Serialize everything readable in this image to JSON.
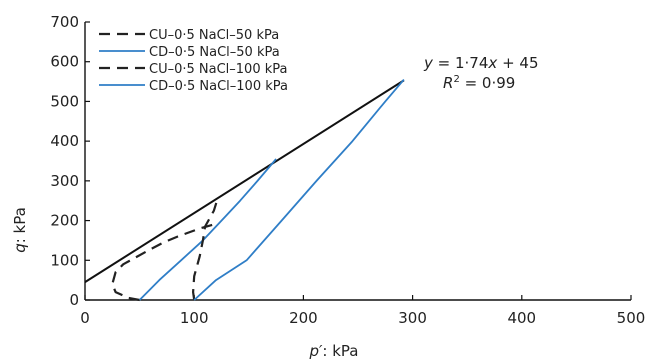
{
  "chart_data": {
    "type": "line",
    "title": "",
    "xlabel": {
      "symbol": "p′",
      "rest": ": kPa"
    },
    "ylabel": {
      "symbol": "q",
      "rest": ": kPa"
    },
    "xlim": [
      0,
      500
    ],
    "ylim": [
      0,
      700
    ],
    "xticks": [
      0,
      100,
      200,
      300,
      400,
      500
    ],
    "yticks": [
      0,
      100,
      200,
      300,
      400,
      500,
      600,
      700
    ],
    "grid": false,
    "legend_position": "top-left",
    "series": [
      {
        "name": "CU–0·5 NaCl–50 kPa",
        "color": "#222222",
        "dash": "dashed",
        "points": [
          [
            50,
            0
          ],
          [
            40,
            5
          ],
          [
            28,
            20
          ],
          [
            25,
            40
          ],
          [
            28,
            70
          ],
          [
            35,
            90
          ],
          [
            45,
            105
          ],
          [
            58,
            125
          ],
          [
            72,
            145
          ],
          [
            85,
            160
          ],
          [
            95,
            170
          ],
          [
            105,
            180
          ],
          [
            118,
            190
          ]
        ]
      },
      {
        "name": "CD–0·5 NaCl–50 kPa",
        "color": "#2f7ec7",
        "dash": "solid",
        "points": [
          [
            50,
            0
          ],
          [
            68,
            50
          ],
          [
            88,
            100
          ],
          [
            108,
            150
          ],
          [
            125,
            200
          ],
          [
            142,
            250
          ],
          [
            158,
            300
          ],
          [
            175,
            355
          ]
        ]
      },
      {
        "name": "CU–0·5 NaCl–100 kPa",
        "color": "#222222",
        "dash": "dashed",
        "points": [
          [
            100,
            0
          ],
          [
            99,
            20
          ],
          [
            100,
            60
          ],
          [
            105,
            110
          ],
          [
            108,
            150
          ],
          [
            110,
            185
          ],
          [
            115,
            210
          ],
          [
            118,
            225
          ],
          [
            122,
            260
          ]
        ]
      },
      {
        "name": "CD–0·5 NaCl–100 kPa",
        "color": "#2f7ec7",
        "dash": "solid",
        "points": [
          [
            100,
            0
          ],
          [
            120,
            50
          ],
          [
            148,
            100
          ],
          [
            180,
            200
          ],
          [
            212,
            300
          ],
          [
            245,
            400
          ],
          [
            275,
            500
          ],
          [
            292,
            555
          ]
        ]
      }
    ],
    "fit_line": {
      "color": "#111111",
      "points": [
        [
          0,
          45
        ],
        [
          292,
          553
        ]
      ]
    },
    "annotation": {
      "equation_parts": [
        {
          "text": "y",
          "italic": true
        },
        {
          "text": " = 1·74",
          "italic": false
        },
        {
          "text": "x",
          "italic": true
        },
        {
          "text": " + 45",
          "italic": false
        }
      ],
      "r2_symbol": "R",
      "r2_sup": "2",
      "r2_rest": " = 0·99"
    }
  }
}
